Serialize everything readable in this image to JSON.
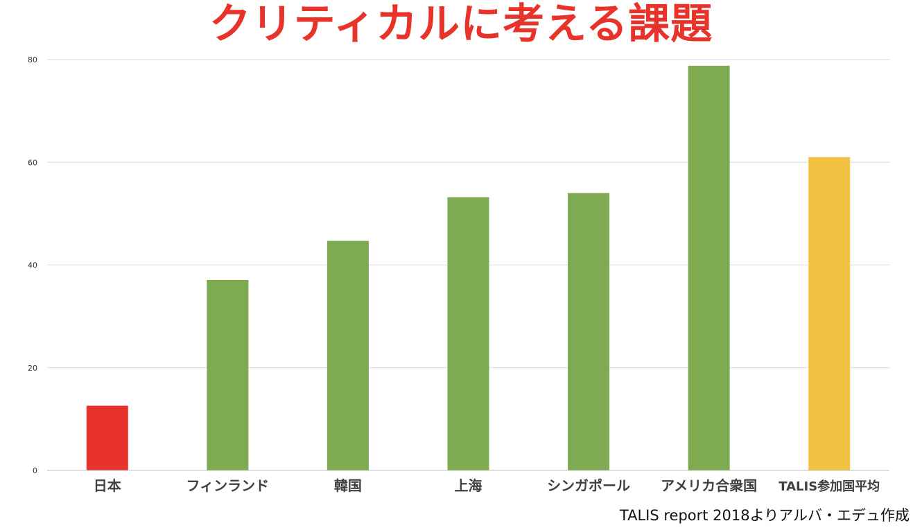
{
  "title": "クリティカルに考える課題",
  "source": "TALIS report 2018よりアルバ・エデュ作成",
  "colors": {
    "title": "#e8332a",
    "japan": "#e8332a",
    "country": "#7eab52",
    "average": "#f4c242",
    "grid": "#d9d9d9",
    "axis": "#bfbfbf",
    "tick_text": "#333333",
    "category_text": "#404040"
  },
  "chart_data": {
    "type": "bar",
    "title": "クリティカルに考える課題",
    "xlabel": "",
    "ylabel": "",
    "categories": [
      "日本",
      "フィンランド",
      "韓国",
      "上海",
      "シンガポール",
      "アメリカ合衆国",
      "TALIS参加国平均"
    ],
    "values": [
      12.6,
      37.1,
      44.7,
      53.2,
      54.0,
      78.8,
      61.0
    ],
    "bar_colors": [
      "#e8332a",
      "#7eab52",
      "#7eab52",
      "#7eab52",
      "#7eab52",
      "#7eab52",
      "#f4c242"
    ],
    "ylim": [
      0,
      80
    ],
    "yticks": [
      0,
      20,
      40,
      60,
      80
    ],
    "grid": true,
    "legend": "none"
  }
}
